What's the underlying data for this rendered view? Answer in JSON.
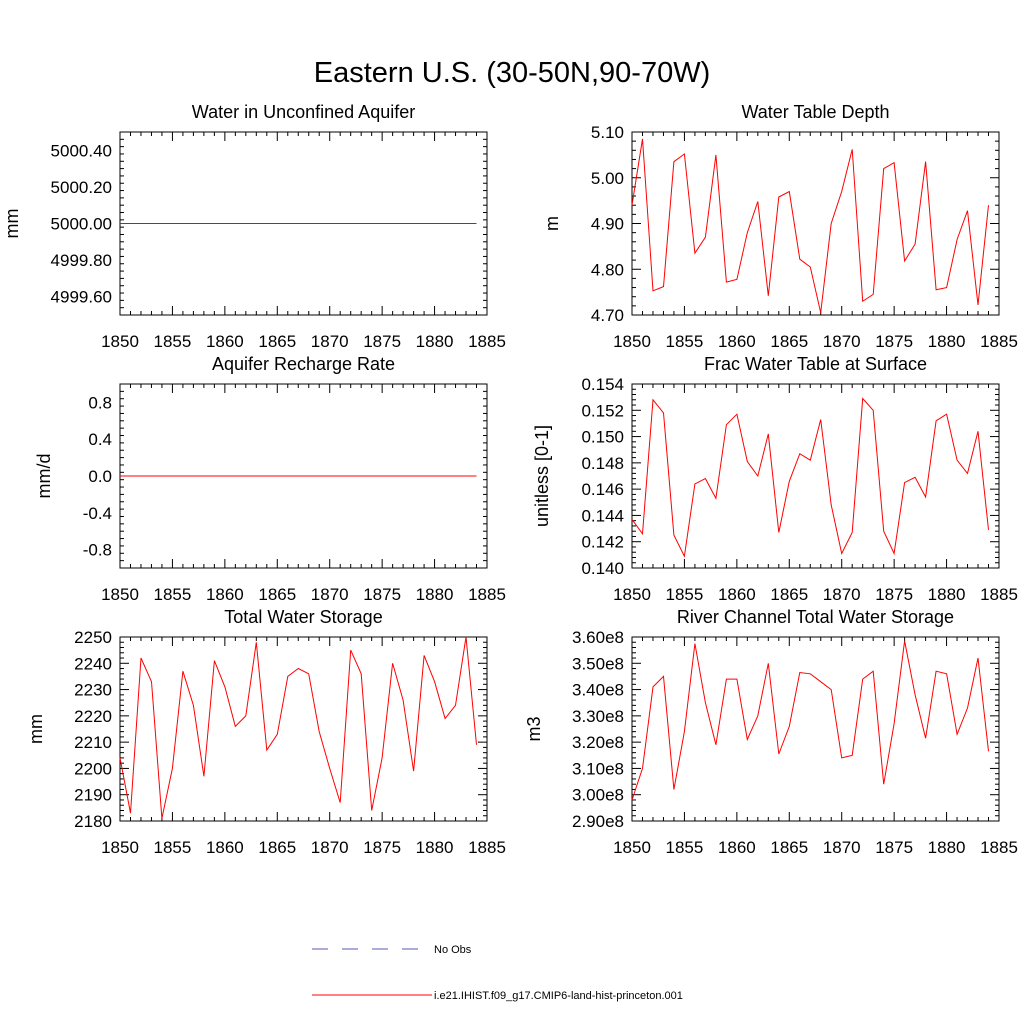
{
  "title": "Eastern U.S. (30-50N,90-70W)",
  "legend": [
    {
      "label": "No Obs",
      "color": "#5a5ab4",
      "style": "dashed"
    },
    {
      "label": "i.e21.IHIST.f09_g17.CMIP6-land-hist-princeton.001",
      "color": "#ff0000",
      "style": "solid"
    }
  ],
  "colors": {
    "series": "#ff0000",
    "axis": "#000000",
    "obs": "#5a5ab4"
  },
  "chart_data": [
    {
      "type": "line",
      "title": "Water in Unconfined Aquifer",
      "ylabel": "mm",
      "xlim": [
        1850,
        1885
      ],
      "ylim": [
        4999.5,
        5000.5
      ],
      "xticks": [
        "1850",
        "1855",
        "1860",
        "1865",
        "1870",
        "1875",
        "1880",
        "1885"
      ],
      "yticks": [
        "4999.60",
        "4999.80",
        "5000.00",
        "5000.20",
        "5000.40"
      ],
      "x": [
        1850,
        1851,
        1852,
        1853,
        1854,
        1855,
        1856,
        1857,
        1858,
        1859,
        1860,
        1861,
        1862,
        1863,
        1864,
        1865,
        1866,
        1867,
        1868,
        1869,
        1870,
        1871,
        1872,
        1873,
        1874,
        1875,
        1876,
        1877,
        1878,
        1879,
        1880,
        1881,
        1882,
        1883,
        1884
      ],
      "values": [
        5000,
        5000,
        5000,
        5000,
        5000,
        5000,
        5000,
        5000,
        5000,
        5000,
        5000,
        5000,
        5000,
        5000,
        5000,
        5000,
        5000,
        5000,
        5000,
        5000,
        5000,
        5000,
        5000,
        5000,
        5000,
        5000,
        5000,
        5000,
        5000,
        5000,
        5000,
        5000,
        5000,
        5000,
        5000
      ]
    },
    {
      "type": "line",
      "title": "Water Table Depth",
      "ylabel": "m",
      "xlim": [
        1850,
        1885
      ],
      "ylim": [
        4.7,
        5.1
      ],
      "xticks": [
        "1850",
        "1855",
        "1860",
        "1865",
        "1870",
        "1875",
        "1880",
        "1885"
      ],
      "yticks": [
        "4.70",
        "4.80",
        "4.90",
        "5.00",
        "5.10"
      ],
      "x": [
        1850,
        1851,
        1852,
        1853,
        1854,
        1855,
        1856,
        1857,
        1858,
        1859,
        1860,
        1861,
        1862,
        1863,
        1864,
        1865,
        1866,
        1867,
        1868,
        1869,
        1870,
        1871,
        1872,
        1873,
        1874,
        1875,
        1876,
        1877,
        1878,
        1879,
        1880,
        1881,
        1882,
        1883,
        1884
      ],
      "values": [
        4.94,
        5.085,
        4.753,
        4.762,
        5.035,
        5.052,
        4.835,
        4.87,
        5.05,
        4.772,
        4.778,
        4.88,
        4.948,
        4.742,
        4.958,
        4.97,
        4.822,
        4.805,
        4.705,
        4.9,
        4.97,
        5.062,
        4.73,
        4.745,
        5.02,
        5.033,
        4.818,
        4.855,
        5.035,
        4.755,
        4.76,
        4.865,
        4.928,
        4.722,
        4.94
      ]
    },
    {
      "type": "line",
      "title": "Aquifer Recharge Rate",
      "ylabel": "mm/d",
      "xlim": [
        1850,
        1885
      ],
      "ylim": [
        -1.0,
        1.0
      ],
      "xticks": [
        "1850",
        "1855",
        "1860",
        "1865",
        "1870",
        "1875",
        "1880",
        "1885"
      ],
      "yticks": [
        "-0.8",
        "-0.4",
        "0.0",
        "0.4",
        "0.8"
      ],
      "x": [
        1850,
        1851,
        1852,
        1853,
        1854,
        1855,
        1856,
        1857,
        1858,
        1859,
        1860,
        1861,
        1862,
        1863,
        1864,
        1865,
        1866,
        1867,
        1868,
        1869,
        1870,
        1871,
        1872,
        1873,
        1874,
        1875,
        1876,
        1877,
        1878,
        1879,
        1880,
        1881,
        1882,
        1883,
        1884
      ],
      "values": [
        0,
        0,
        0,
        0,
        0,
        0,
        0,
        0,
        0,
        0,
        0,
        0,
        0,
        0,
        0,
        0,
        0,
        0,
        0,
        0,
        0,
        0,
        0,
        0,
        0,
        0,
        0,
        0,
        0,
        0,
        0,
        0,
        0,
        0,
        0
      ]
    },
    {
      "type": "line",
      "title": "Frac Water Table at Surface",
      "ylabel": "unitless [0-1]",
      "xlim": [
        1850,
        1885
      ],
      "ylim": [
        0.14,
        0.154
      ],
      "xticks": [
        "1850",
        "1855",
        "1860",
        "1865",
        "1870",
        "1875",
        "1880",
        "1885"
      ],
      "yticks": [
        "0.140",
        "0.142",
        "0.144",
        "0.146",
        "0.148",
        "0.150",
        "0.152",
        "0.154"
      ],
      "x": [
        1850,
        1851,
        1852,
        1853,
        1854,
        1855,
        1856,
        1857,
        1858,
        1859,
        1860,
        1861,
        1862,
        1863,
        1864,
        1865,
        1866,
        1867,
        1868,
        1869,
        1870,
        1871,
        1872,
        1873,
        1874,
        1875,
        1876,
        1877,
        1878,
        1879,
        1880,
        1881,
        1882,
        1883,
        1884
      ],
      "values": [
        0.1437,
        0.1426,
        0.1528,
        0.1518,
        0.1425,
        0.1409,
        0.1464,
        0.1468,
        0.1453,
        0.1509,
        0.1517,
        0.1481,
        0.147,
        0.1502,
        0.1427,
        0.1466,
        0.1487,
        0.1482,
        0.1513,
        0.1448,
        0.1411,
        0.1427,
        0.1529,
        0.152,
        0.1428,
        0.1411,
        0.1465,
        0.1469,
        0.1454,
        0.1512,
        0.1517,
        0.1482,
        0.1472,
        0.1504,
        0.1429
      ]
    },
    {
      "type": "line",
      "title": "Total Water Storage",
      "ylabel": "mm",
      "xlim": [
        1850,
        1885
      ],
      "ylim": [
        2180,
        2250
      ],
      "xticks": [
        "1850",
        "1855",
        "1860",
        "1865",
        "1870",
        "1875",
        "1880",
        "1885"
      ],
      "yticks": [
        "2180",
        "2190",
        "2200",
        "2210",
        "2220",
        "2230",
        "2240",
        "2250"
      ],
      "x": [
        1850,
        1851,
        1852,
        1853,
        1854,
        1855,
        1856,
        1857,
        1858,
        1859,
        1860,
        1861,
        1862,
        1863,
        1864,
        1865,
        1866,
        1867,
        1868,
        1869,
        1870,
        1871,
        1872,
        1873,
        1874,
        1875,
        1876,
        1877,
        1878,
        1879,
        1880,
        1881,
        1882,
        1883,
        1884
      ],
      "values": [
        2204,
        2183,
        2242,
        2233,
        2181,
        2200,
        2237,
        2224,
        2197,
        2241,
        2231,
        2216,
        2220,
        2248,
        2207,
        2213,
        2235,
        2238,
        2236,
        2214,
        2200,
        2187,
        2245,
        2236,
        2184,
        2204,
        2240,
        2226,
        2199,
        2243,
        2233,
        2219,
        2224,
        2250,
        2209
      ]
    },
    {
      "type": "line",
      "title": "River Channel Total Water Storage",
      "ylabel": "m3",
      "xlim": [
        1850,
        1885
      ],
      "ylim": [
        290000000.0,
        360000000.0
      ],
      "xticks": [
        "1850",
        "1855",
        "1860",
        "1865",
        "1870",
        "1875",
        "1880",
        "1885"
      ],
      "yticks": [
        "2.90e8",
        "3.00e8",
        "3.10e8",
        "3.20e8",
        "3.30e8",
        "3.40e8",
        "3.50e8",
        "3.60e8"
      ],
      "x": [
        1850,
        1851,
        1852,
        1853,
        1854,
        1855,
        1856,
        1857,
        1858,
        1859,
        1860,
        1861,
        1862,
        1863,
        1864,
        1865,
        1866,
        1867,
        1868,
        1869,
        1870,
        1871,
        1872,
        1873,
        1874,
        1875,
        1876,
        1877,
        1878,
        1879,
        1880,
        1881,
        1882,
        1883,
        1884
      ],
      "values": [
        298000000.0,
        310000000.0,
        341000000.0,
        345000000.0,
        302000000.0,
        324000000.0,
        357500000.0,
        335000000.0,
        319000000.0,
        344000000.0,
        344000000.0,
        321000000.0,
        330000000.0,
        350000000.0,
        315500000.0,
        326000000.0,
        346500000.0,
        346000000.0,
        343000000.0,
        340000000.0,
        314000000.0,
        315000000.0,
        344000000.0,
        347000000.0,
        304000000.0,
        327000000.0,
        358500000.0,
        338000000.0,
        321500000.0,
        347000000.0,
        346000000.0,
        323000000.0,
        333000000.0,
        352000000.0,
        316500000.0
      ]
    }
  ]
}
